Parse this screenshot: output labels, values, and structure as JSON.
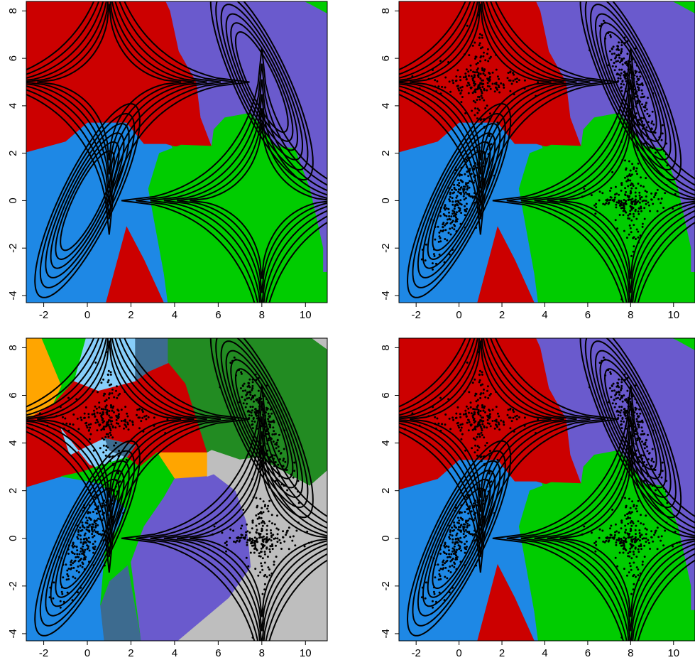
{
  "colors": {
    "red": "#cc0000",
    "blue": "#1e88e5",
    "green": "#00cc00",
    "purple": "#6a5acd",
    "light_blue": "#87cefa",
    "steel": "#3d6b8f",
    "dark_green": "#228b22",
    "orange": "#ffa500",
    "gray": "#bebebe"
  },
  "chart_data": [
    {
      "type": "scatter",
      "panel": "top-left",
      "title": "",
      "xlabel": "",
      "ylabel": "",
      "xlim": [
        -2.8,
        11
      ],
      "ylim": [
        -4.3,
        8.4
      ],
      "xticks": [
        -2,
        0,
        2,
        4,
        6,
        8,
        10
      ],
      "yticks": [
        -4,
        -2,
        0,
        2,
        4,
        6,
        8
      ],
      "show_points": false,
      "regions": "four-class",
      "grid": false,
      "legend": "none"
    },
    {
      "type": "scatter",
      "panel": "top-right",
      "title": "",
      "xlabel": "",
      "ylabel": "",
      "xlim": [
        -2.8,
        11
      ],
      "ylim": [
        -4.3,
        8.4
      ],
      "xticks": [
        -2,
        0,
        2,
        4,
        6,
        8,
        10
      ],
      "yticks": [
        -4,
        -2,
        0,
        2,
        4,
        6,
        8
      ],
      "show_points": true,
      "regions": "four-class",
      "grid": false,
      "legend": "none"
    },
    {
      "type": "scatter",
      "panel": "bottom-left",
      "title": "",
      "xlabel": "",
      "ylabel": "",
      "xlim": [
        -2.8,
        11
      ],
      "ylim": [
        -4.3,
        8.4
      ],
      "xticks": [
        -2,
        0,
        2,
        4,
        6,
        8,
        10
      ],
      "yticks": [
        -4,
        -2,
        0,
        2,
        4,
        6,
        8
      ],
      "show_points": true,
      "regions": "many-class",
      "grid": false,
      "legend": "none"
    },
    {
      "type": "scatter",
      "panel": "bottom-right",
      "title": "",
      "xlabel": "",
      "ylabel": "",
      "xlim": [
        -2.8,
        11
      ],
      "ylim": [
        -4.3,
        8.4
      ],
      "xticks": [
        -2,
        0,
        2,
        4,
        6,
        8,
        10
      ],
      "yticks": [
        -4,
        -2,
        0,
        2,
        4,
        6,
        8
      ],
      "show_points": true,
      "regions": "four-class",
      "grid": false,
      "legend": "none"
    }
  ],
  "mixture_components": [
    {
      "shape": "cross",
      "center": [
        1,
        5
      ]
    },
    {
      "shape": "cross",
      "center": [
        8,
        0
      ]
    },
    {
      "shape": "ellipse",
      "center": [
        0,
        0
      ],
      "angle_deg": 62
    },
    {
      "shape": "ellipse",
      "center": [
        8,
        5
      ],
      "angle_deg": 117
    }
  ],
  "contour_levels": [
    1.0,
    1.18,
    1.36,
    1.55,
    1.75,
    1.95
  ]
}
